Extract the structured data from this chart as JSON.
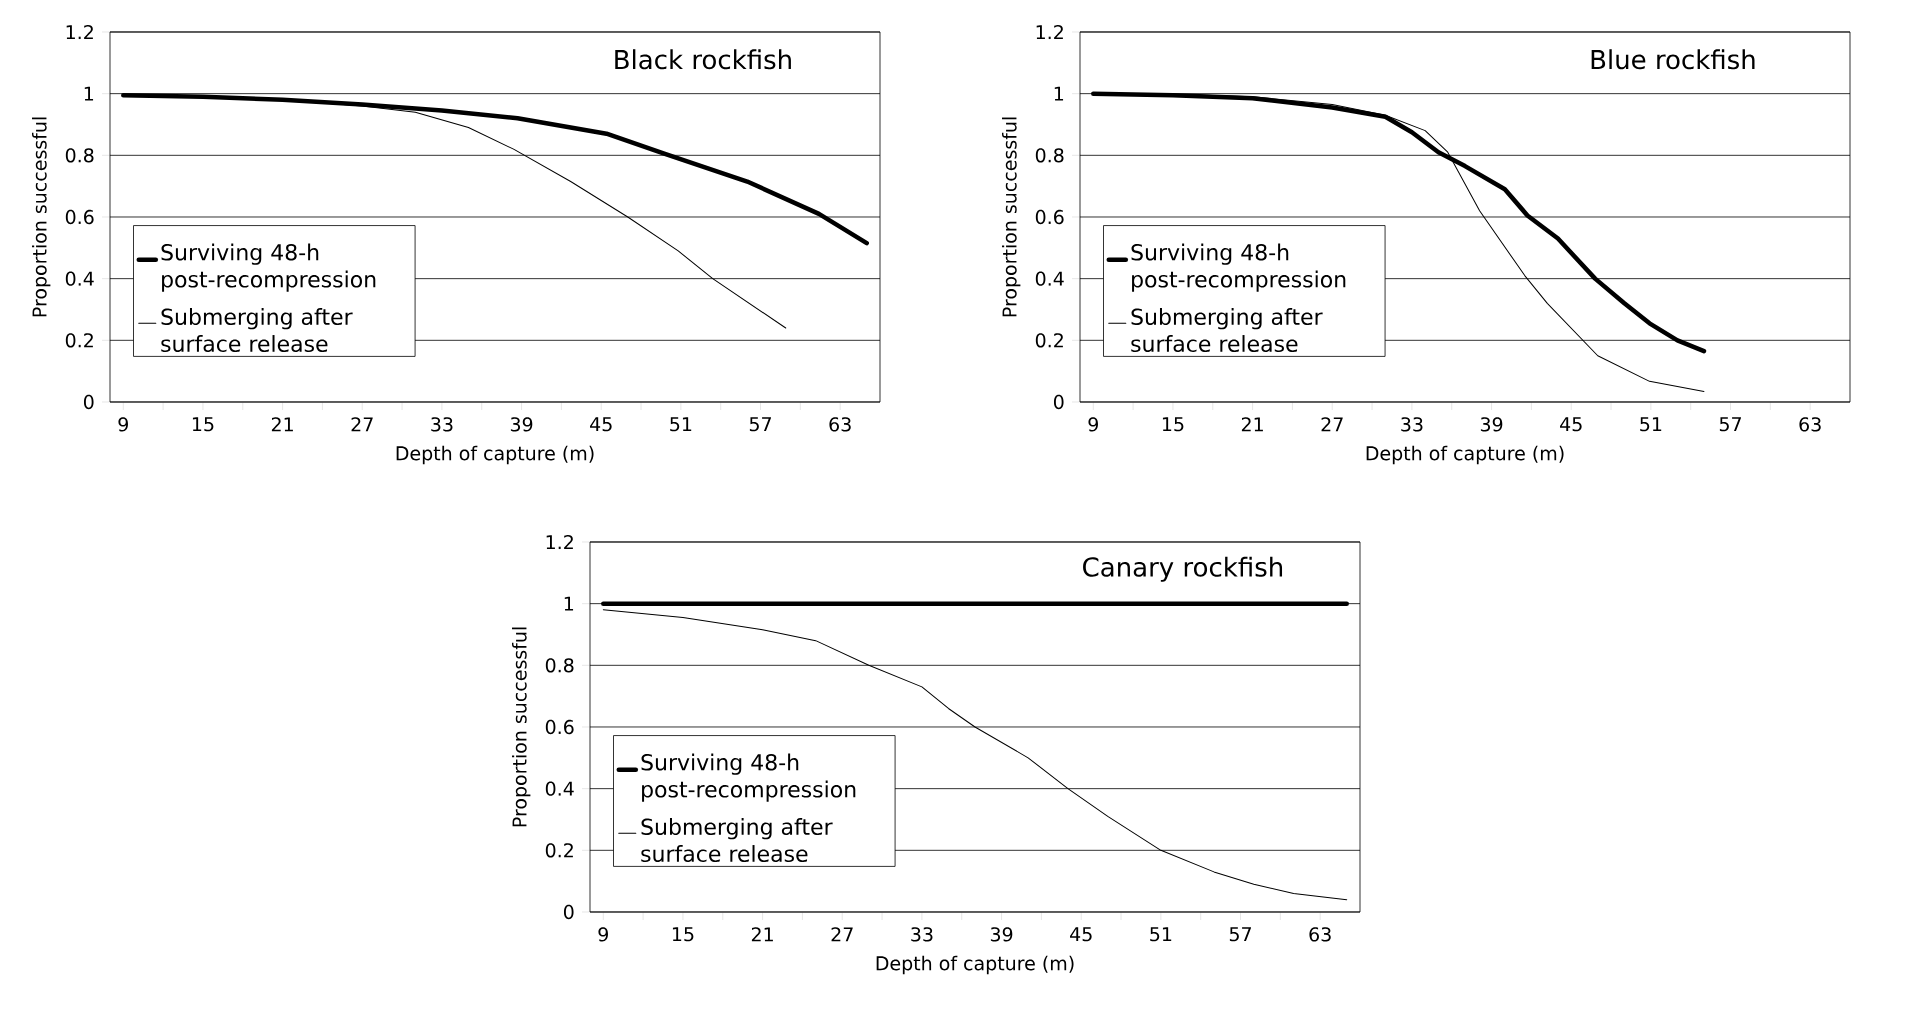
{
  "chart_data": [
    {
      "type": "line",
      "title": "Black rockfish",
      "xlabel": "Depth of capture (m)",
      "ylabel": "Proportion successful",
      "xlim": [
        8,
        66
      ],
      "ylim": [
        0,
        1.2
      ],
      "xticks": [
        9,
        {
          "value": 12,
          "label": null
        },
        15,
        {
          "value": 18,
          "label": null
        },
        21,
        {
          "value": 24,
          "label": null
        },
        27,
        {
          "value": 30,
          "label": null
        },
        33,
        {
          "value": 36,
          "label": null
        },
        39,
        {
          "value": 42,
          "label": null
        },
        45,
        {
          "value": 48,
          "label": null
        },
        51,
        {
          "value": 54,
          "label": null
        },
        57,
        {
          "value": 60,
          "label": null
        },
        63
      ],
      "yticks": [
        0,
        0.2,
        0.4,
        0.6,
        0.8,
        1,
        1.2
      ],
      "grid": "y",
      "legend": "left",
      "marker": "none",
      "line_style": "solid",
      "series": [
        {
          "name": "Surviving 48-h post-recompression",
          "color": "#000000",
          "x": [
            9,
            15,
            21,
            27,
            33,
            38.7,
            45.4,
            49.8,
            56,
            61.4,
            65
          ],
          "values": [
            0.995,
            0.99,
            0.98,
            0.965,
            0.945,
            0.92,
            0.87,
            0.805,
            0.715,
            0.61,
            0.515
          ]
        },
        {
          "name": "Submerging after surface release",
          "color": "#000000",
          "x": [
            9,
            15,
            21,
            27,
            31,
            35,
            38.4,
            42.7,
            47,
            50.8,
            53.4,
            58.9
          ],
          "values": [
            0.995,
            0.99,
            0.98,
            0.96,
            0.94,
            0.89,
            0.82,
            0.715,
            0.6,
            0.49,
            0.4,
            0.24
          ]
        }
      ]
    },
    {
      "type": "line",
      "title": "Blue rockfish",
      "xlabel": "Depth of capture (m)",
      "ylabel": "Proportion successful",
      "xlim": [
        8,
        66
      ],
      "ylim": [
        0,
        1.2
      ],
      "xticks": [
        9,
        {
          "value": 12,
          "label": null
        },
        15,
        {
          "value": 18,
          "label": null
        },
        21,
        {
          "value": 24,
          "label": null
        },
        27,
        {
          "value": 30,
          "label": null
        },
        33,
        {
          "value": 36,
          "label": null
        },
        39,
        {
          "value": 42,
          "label": null
        },
        45,
        {
          "value": 48,
          "label": null
        },
        51,
        {
          "value": 54,
          "label": null
        },
        57,
        {
          "value": 60,
          "label": null
        },
        63
      ],
      "yticks": [
        0,
        0.2,
        0.4,
        0.6,
        0.8,
        1,
        1.2
      ],
      "grid": "y",
      "legend": "left",
      "marker": "none",
      "line_style": "solid",
      "series": [
        {
          "name": "Surviving 48-h post-recompression",
          "color": "#000000",
          "x": [
            9,
            15,
            21,
            27,
            31,
            33,
            35,
            37,
            40,
            41.7,
            44,
            46.8,
            49,
            50.9,
            53,
            55
          ],
          "values": [
            1.0,
            0.995,
            0.985,
            0.955,
            0.925,
            0.875,
            0.81,
            0.765,
            0.69,
            0.605,
            0.53,
            0.4,
            0.32,
            0.255,
            0.2,
            0.165
          ]
        },
        {
          "name": "Submerging after surface release",
          "color": "#000000",
          "x": [
            9,
            15,
            21,
            27,
            31,
            34,
            35.7,
            38.1,
            41.5,
            43.2,
            47,
            50.9,
            55
          ],
          "values": [
            1.0,
            0.998,
            0.99,
            0.965,
            0.93,
            0.88,
            0.81,
            0.62,
            0.41,
            0.32,
            0.15,
            0.067,
            0.034
          ]
        }
      ]
    },
    {
      "type": "line",
      "title": "Canary rockfish",
      "xlabel": "Depth of capture (m)",
      "ylabel": "Proportion successful",
      "xlim": [
        8,
        66
      ],
      "ylim": [
        0,
        1.2
      ],
      "xticks": [
        9,
        {
          "value": 12,
          "label": null
        },
        15,
        {
          "value": 18,
          "label": null
        },
        21,
        {
          "value": 24,
          "label": null
        },
        27,
        {
          "value": 30,
          "label": null
        },
        33,
        {
          "value": 36,
          "label": null
        },
        39,
        {
          "value": 42,
          "label": null
        },
        45,
        {
          "value": 48,
          "label": null
        },
        51,
        {
          "value": 54,
          "label": null
        },
        57,
        {
          "value": 60,
          "label": null
        },
        63
      ],
      "yticks": [
        0,
        0.2,
        0.4,
        0.6,
        0.8,
        1,
        1.2
      ],
      "grid": "y",
      "legend": "left",
      "marker": "none",
      "line_style": "solid",
      "series": [
        {
          "name": "Surviving 48-h post-recompression",
          "color": "#000000",
          "x": [
            9,
            65
          ],
          "values": [
            1,
            1
          ]
        },
        {
          "name": "Submerging after surface release",
          "color": "#000000",
          "x": [
            9,
            15,
            21,
            25,
            29,
            33,
            35,
            37,
            41,
            44,
            47,
            51,
            55,
            58,
            61,
            65
          ],
          "values": [
            0.98,
            0.955,
            0.915,
            0.88,
            0.8,
            0.73,
            0.66,
            0.6,
            0.5,
            0.4,
            0.31,
            0.2,
            0.13,
            0.09,
            0.06,
            0.04
          ]
        }
      ]
    }
  ]
}
